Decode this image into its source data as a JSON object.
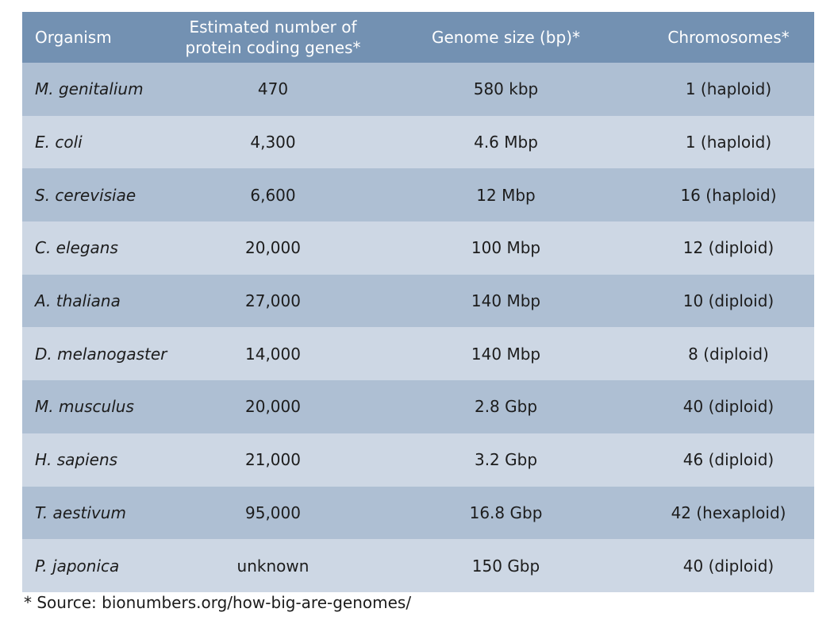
{
  "table": {
    "headers": {
      "organism": "Organism",
      "genes_line1": "Estimated number of",
      "genes_line2": "protein coding genes*",
      "genome_size": "Genome size (bp)*",
      "chromosomes": "Chromosomes*"
    },
    "rows": [
      {
        "organism": "M. genitalium",
        "genes": "470",
        "genome_size": "580 kbp",
        "chromosomes": "1 (haploid)"
      },
      {
        "organism": "E. coli",
        "genes": "4,300",
        "genome_size": "4.6 Mbp",
        "chromosomes": "1 (haploid)"
      },
      {
        "organism": "S. cerevisiae",
        "genes": "6,600",
        "genome_size": "12 Mbp",
        "chromosomes": "16 (haploid)"
      },
      {
        "organism": "C. elegans",
        "genes": "20,000",
        "genome_size": "100 Mbp",
        "chromosomes": "12 (diploid)"
      },
      {
        "organism": "A. thaliana",
        "genes": "27,000",
        "genome_size": "140 Mbp",
        "chromosomes": "10 (diploid)"
      },
      {
        "organism": "D. melanogaster",
        "genes": "14,000",
        "genome_size": "140 Mbp",
        "chromosomes": "8 (diploid)"
      },
      {
        "organism": "M. musculus",
        "genes": "20,000",
        "genome_size": "2.8 Gbp",
        "chromosomes": "40 (diploid)"
      },
      {
        "organism": "H. sapiens",
        "genes": "21,000",
        "genome_size": "3.2 Gbp",
        "chromosomes": "46 (diploid)"
      },
      {
        "organism": "T. aestivum",
        "genes": "95,000",
        "genome_size": "16.8 Gbp",
        "chromosomes": "42 (hexaploid)"
      },
      {
        "organism": "P. japonica",
        "genes": "unknown",
        "genome_size": "150 Gbp",
        "chromosomes": "40 (diploid)"
      }
    ]
  },
  "footnote": "* Source: bionumbers.org/how-big-are-genomes/",
  "colors": {
    "header_bg": "#7391b2",
    "row_dark": "#aebfd3",
    "row_light": "#cdd7e4",
    "header_text": "#ffffff",
    "body_text": "#1c1c1c"
  }
}
